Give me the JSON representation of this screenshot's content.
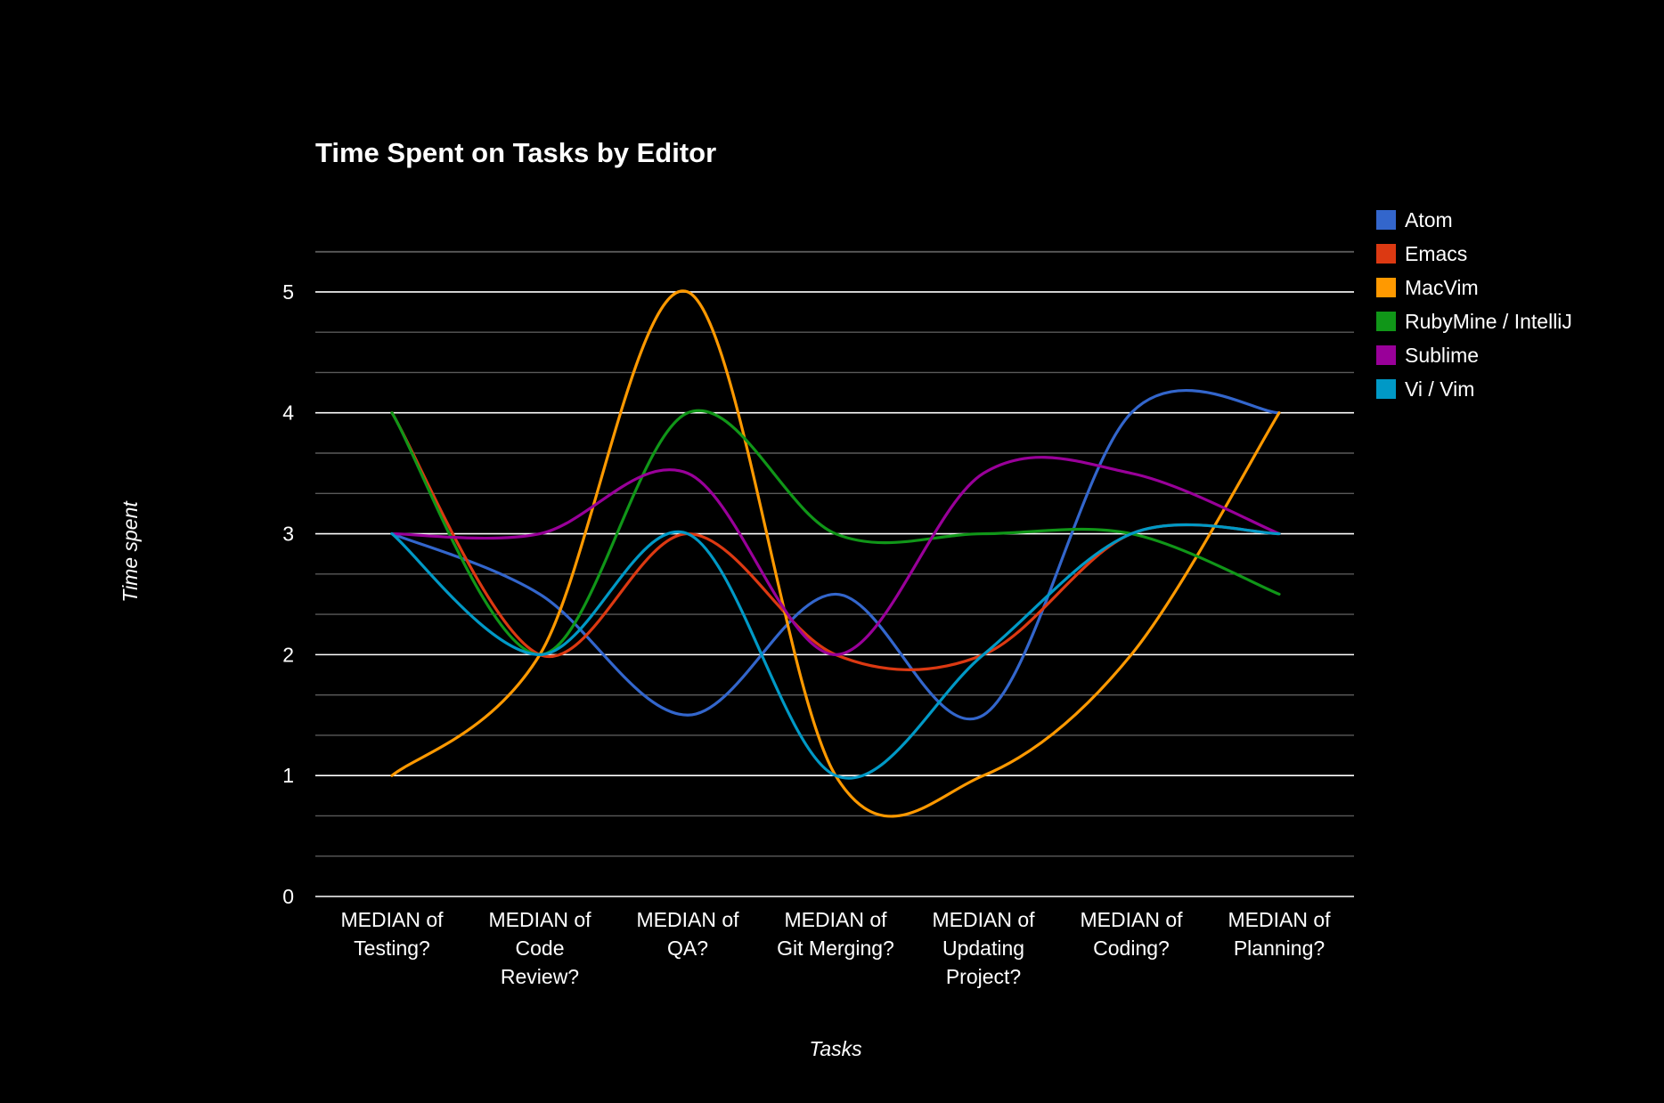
{
  "chart_data": {
    "type": "line",
    "title": "Time Spent on Tasks by Editor",
    "xlabel": "Tasks",
    "ylabel": "Time spent",
    "ylim": [
      0,
      5
    ],
    "yticks": [
      "0",
      "1",
      "2",
      "3",
      "4",
      "5"
    ],
    "grid": true,
    "legend_position": "right",
    "categories": [
      [
        "MEDIAN of",
        "Testing?"
      ],
      [
        "MEDIAN of",
        "Code",
        "Review?"
      ],
      [
        "MEDIAN of",
        "QA?"
      ],
      [
        "MEDIAN of",
        "Git Merging?"
      ],
      [
        "MEDIAN of",
        "Updating",
        "Project?"
      ],
      [
        "MEDIAN of",
        "Coding?"
      ],
      [
        "MEDIAN of",
        "Planning?"
      ]
    ],
    "series": [
      {
        "name": "Atom",
        "color": "#3366cc",
        "values": [
          3,
          2.5,
          1.5,
          2.5,
          1.5,
          4,
          4
        ]
      },
      {
        "name": "Emacs",
        "color": "#dc3912",
        "values": [
          4,
          2,
          3,
          2,
          2,
          3,
          3
        ]
      },
      {
        "name": "MacVim",
        "color": "#ff9900",
        "values": [
          1,
          2,
          5,
          1,
          1,
          2,
          4
        ]
      },
      {
        "name": "RubyMine / IntelliJ",
        "color": "#109618",
        "values": [
          4,
          2,
          4,
          3,
          3,
          3,
          2.5
        ]
      },
      {
        "name": "Sublime",
        "color": "#990099",
        "values": [
          3,
          3,
          3.5,
          2,
          3.5,
          3.5,
          3
        ]
      },
      {
        "name": "Vi / Vim",
        "color": "#0099c6",
        "values": [
          3,
          2,
          3,
          1,
          2,
          3,
          3
        ]
      }
    ]
  }
}
